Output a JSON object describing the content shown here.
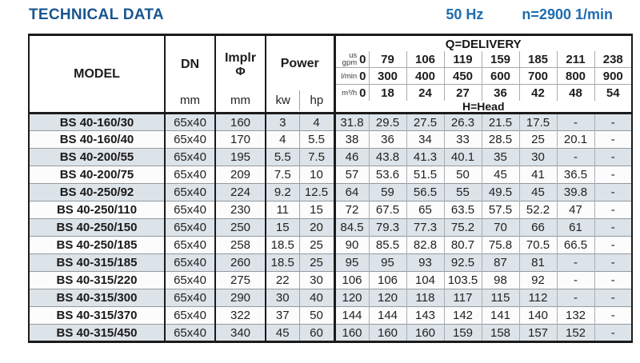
{
  "page": {
    "title": "TECHNICAL DATA",
    "frequency": "50 Hz",
    "speed": "n=2900 1/min"
  },
  "colors": {
    "title_blue": "#19568f",
    "accent_blue": "#1e6cb0",
    "row_shade": "#dce3e9",
    "border_dark": "#1b1b1b",
    "grid_gray": "#a3a9af"
  },
  "table": {
    "head": {
      "model": "MODEL",
      "dn": "DN",
      "impeller_top": "Implr",
      "impeller_symbol": "Φ",
      "power": "Power",
      "unit_mm": "mm",
      "unit_kw": "kw",
      "unit_hp": "hp",
      "delivery_label": "Q=DELIVERY",
      "head_label": "H=Head"
    },
    "delivery_rows": [
      {
        "unit_lines": [
          "us",
          "gpm"
        ],
        "zero": "0",
        "values": [
          "79",
          "106",
          "119",
          "159",
          "185",
          "211",
          "238"
        ]
      },
      {
        "unit_lines": [
          "l/min"
        ],
        "zero": "0",
        "values": [
          "300",
          "400",
          "450",
          "600",
          "700",
          "800",
          "900"
        ]
      },
      {
        "unit_lines": [
          "m³/h"
        ],
        "zero": "0",
        "values": [
          "18",
          "24",
          "27",
          "36",
          "42",
          "48",
          "54"
        ]
      }
    ],
    "rows": [
      {
        "model": "BS 40-160/30",
        "dn": "65x40",
        "impeller": "160",
        "kw": "3",
        "hp": "4",
        "head": [
          "31.8",
          "29.5",
          "27.5",
          "26.3",
          "21.5",
          "17.5",
          "-",
          "-"
        ]
      },
      {
        "model": "BS 40-160/40",
        "dn": "65x40",
        "impeller": "170",
        "kw": "4",
        "hp": "5.5",
        "head": [
          "38",
          "36",
          "34",
          "33",
          "28.5",
          "25",
          "20.1",
          "-"
        ]
      },
      {
        "model": "BS 40-200/55",
        "dn": "65x40",
        "impeller": "195",
        "kw": "5.5",
        "hp": "7.5",
        "head": [
          "46",
          "43.8",
          "41.3",
          "40.1",
          "35",
          "30",
          "-",
          "-"
        ]
      },
      {
        "model": "BS 40-200/75",
        "dn": "65x40",
        "impeller": "209",
        "kw": "7.5",
        "hp": "10",
        "head": [
          "57",
          "53.6",
          "51.5",
          "50",
          "45",
          "41",
          "36.5",
          "-"
        ]
      },
      {
        "model": "BS 40-250/92",
        "dn": "65x40",
        "impeller": "224",
        "kw": "9.2",
        "hp": "12.5",
        "head": [
          "64",
          "59",
          "56.5",
          "55",
          "49.5",
          "45",
          "39.8",
          "-"
        ]
      },
      {
        "model": "BS 40-250/110",
        "dn": "65x40",
        "impeller": "230",
        "kw": "11",
        "hp": "15",
        "head": [
          "72",
          "67.5",
          "65",
          "63.5",
          "57.5",
          "52.2",
          "47",
          "-"
        ]
      },
      {
        "model": "BS 40-250/150",
        "dn": "65x40",
        "impeller": "250",
        "kw": "15",
        "hp": "20",
        "head": [
          "84.5",
          "79.3",
          "77.3",
          "75.2",
          "70",
          "66",
          "61",
          "-"
        ]
      },
      {
        "model": "BS 40-250/185",
        "dn": "65x40",
        "impeller": "258",
        "kw": "18.5",
        "hp": "25",
        "head": [
          "90",
          "85.5",
          "82.8",
          "80.7",
          "75.8",
          "70.5",
          "66.5",
          "-"
        ]
      },
      {
        "model": "BS 40-315/185",
        "dn": "65x40",
        "impeller": "260",
        "kw": "18.5",
        "hp": "25",
        "head": [
          "95",
          "95",
          "93",
          "92.5",
          "87",
          "81",
          "-",
          "-"
        ]
      },
      {
        "model": "BS 40-315/220",
        "dn": "65x40",
        "impeller": "275",
        "kw": "22",
        "hp": "30",
        "head": [
          "106",
          "106",
          "104",
          "103.5",
          "98",
          "92",
          "-",
          "-"
        ]
      },
      {
        "model": "BS 40-315/300",
        "dn": "65x40",
        "impeller": "290",
        "kw": "30",
        "hp": "40",
        "head": [
          "120",
          "120",
          "118",
          "117",
          "115",
          "112",
          "-",
          "-"
        ]
      },
      {
        "model": "BS 40-315/370",
        "dn": "65x40",
        "impeller": "322",
        "kw": "37",
        "hp": "50",
        "head": [
          "144",
          "144",
          "143",
          "142",
          "141",
          "140",
          "132",
          "-"
        ]
      },
      {
        "model": "BS 40-315/450",
        "dn": "65x40",
        "impeller": "340",
        "kw": "45",
        "hp": "60",
        "head": [
          "160",
          "160",
          "160",
          "159",
          "158",
          "157",
          "152",
          "-"
        ]
      }
    ]
  }
}
